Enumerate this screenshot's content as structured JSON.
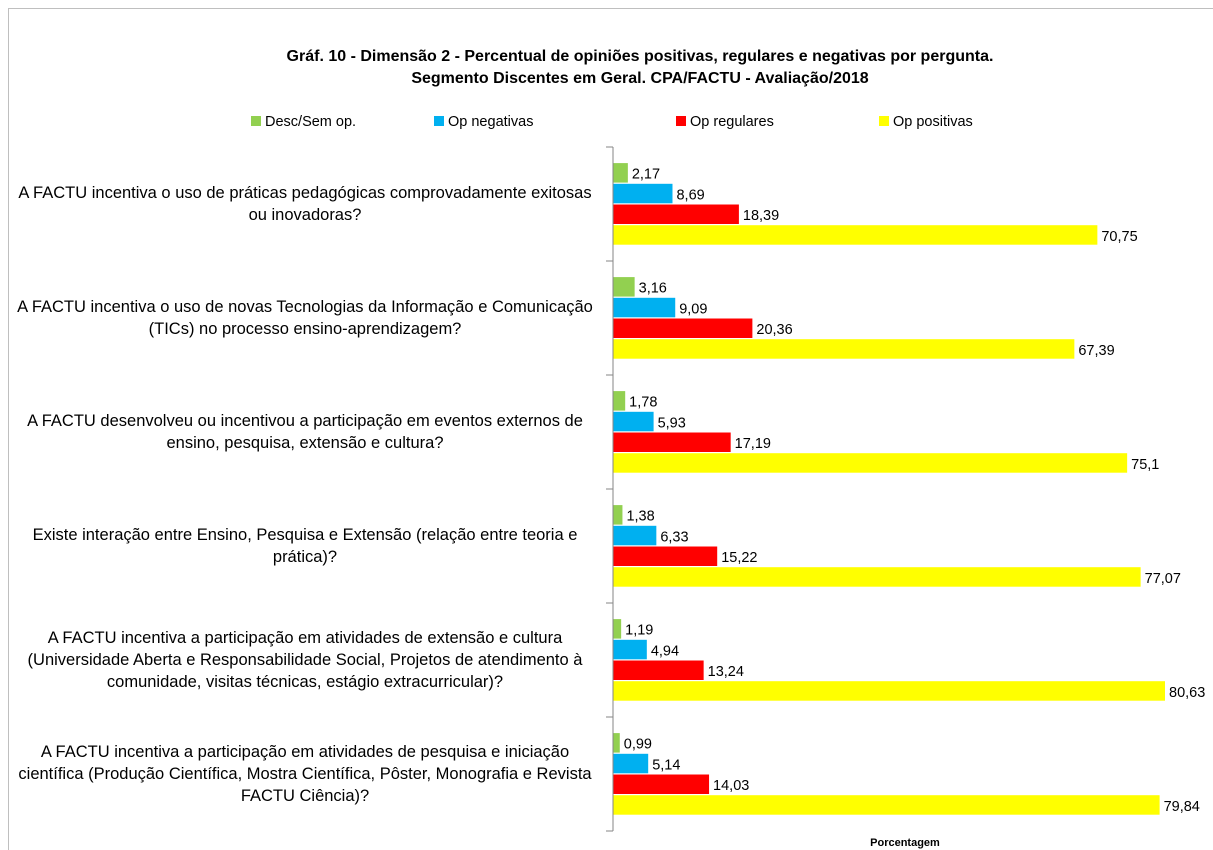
{
  "chart_data": {
    "type": "hbar",
    "title": "Gráf. 10 - Dimensão 2 - Percentual de opiniões positivas, regulares e negativas por pergunta.",
    "subtitle": "Segmento Discentes em Geral. CPA/FACTU - Avaliação/2018",
    "x_label": "Porcentagem",
    "categories": [
      "A FACTU incentiva o uso de práticas pedagógicas comprovadamente exitosas ou inovadoras?",
      "A FACTU incentiva o uso de novas Tecnologias da Informação e Comunicação (TICs) no processo ensino-aprendizagem?",
      "A FACTU desenvolveu ou incentivou a participação em eventos externos de ensino, pesquisa, extensão e cultura?",
      "Existe interação entre Ensino, Pesquisa e Extensão (relação entre teoria e prática)?",
      "A FACTU incentiva a participação em atividades de extensão e cultura (Universidade Aberta e Responsabilidade Social, Projetos de atendimento à comunidade, visitas técnicas, estágio extracurricular)?",
      "A FACTU incentiva a participação em atividades de pesquisa e iniciação científica (Produção Científica, Mostra Científica, Pôster, Monografia e Revista FACTU Ciência)?"
    ],
    "series": [
      {
        "name": "Desc/Sem op.",
        "color": "#92d050",
        "values": [
          2.17,
          3.16,
          1.78,
          1.38,
          1.19,
          0.99
        ],
        "value_labels": [
          "2,17",
          "3,16",
          "1,78",
          "1,38",
          "1,19",
          "0,99"
        ]
      },
      {
        "name": "Op negativas",
        "color": "#00b0f0",
        "values": [
          8.69,
          9.09,
          5.93,
          6.33,
          4.94,
          5.14
        ],
        "value_labels": [
          "8,69",
          "9,09",
          "5,93",
          "6,33",
          "4,94",
          "5,14"
        ]
      },
      {
        "name": "Op regulares",
        "color": "#ff0000",
        "values": [
          18.39,
          20.36,
          17.19,
          15.22,
          13.24,
          14.03
        ],
        "value_labels": [
          "18,39",
          "20,36",
          "17,19",
          "15,22",
          "13,24",
          "14,03"
        ]
      },
      {
        "name": "Op positivas",
        "color": "#ffff00",
        "values": [
          70.75,
          67.39,
          75.1,
          77.07,
          80.63,
          79.84
        ],
        "value_labels": [
          "70,75",
          "67,39",
          "75,1",
          "77,07",
          "80,63",
          "79,84"
        ]
      }
    ],
    "xlim": [
      0,
      85
    ],
    "legend": "top"
  }
}
